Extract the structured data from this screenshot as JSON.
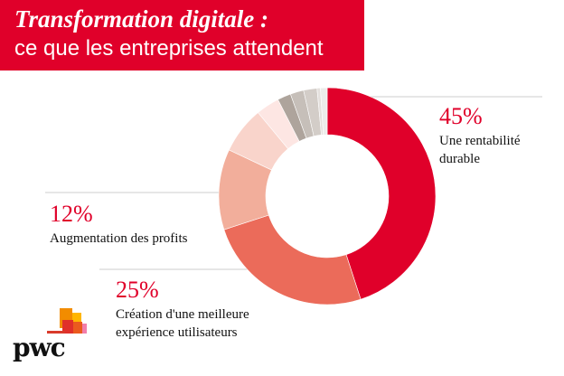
{
  "header": {
    "title": "Transformation digitale :",
    "subtitle": "ce que les entreprises attendent"
  },
  "chart_data": {
    "type": "pie",
    "donut": true,
    "values": [
      45,
      25,
      12,
      7,
      3.5,
      2,
      2,
      2,
      0.5,
      1
    ],
    "colors": [
      "#e0002a",
      "#eb6b5a",
      "#f2ae9b",
      "#f9d4cb",
      "#fde6e3",
      "#aea49c",
      "#c6bfb9",
      "#d3cdc8",
      "#e4e0dd",
      "#ececea"
    ],
    "annotations": [
      {
        "value": "45%",
        "label": "Une rentabilité durable",
        "label_lines": [
          "Une rentabilité",
          "durable"
        ]
      },
      {
        "value": "12%",
        "label": "Augmentation des profits",
        "label_lines": [
          "Augmentation des profits"
        ]
      },
      {
        "value": "25%",
        "label": "Création d'une meilleure expérience utilisateurs",
        "label_lines": [
          "Création d'une meilleure",
          "expérience utilisateurs"
        ]
      }
    ]
  },
  "logo": {
    "text": "pwc"
  }
}
